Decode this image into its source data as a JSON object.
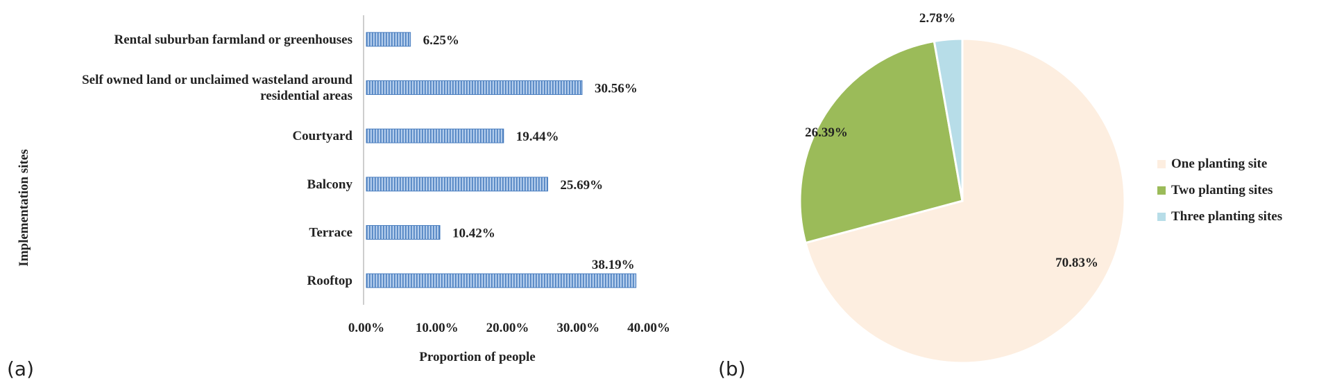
{
  "panel_labels": {
    "a": "(a)",
    "b": "(b)"
  },
  "chart_data": [
    {
      "type": "bar",
      "orientation": "horizontal",
      "title": "",
      "xlabel": "Proportion of people",
      "ylabel": "Implementation sites",
      "xlim": [
        0,
        40
      ],
      "x_ticks": [
        "0.00%",
        "10.00%",
        "20.00%",
        "30.00%",
        "40.00%"
      ],
      "categories": [
        "Rental suburban farmland or greenhouses",
        "Self owned land or unclaimed wasteland around residential areas",
        "Courtyard",
        "Balcony",
        "Terrace",
        "Rooftop"
      ],
      "category_lines": [
        [
          "Rental suburban farmland or greenhouses"
        ],
        [
          "Self owned land or unclaimed wasteland around",
          "residential areas"
        ],
        [
          "Courtyard"
        ],
        [
          "Balcony"
        ],
        [
          "Terrace"
        ],
        [
          "Rooftop"
        ]
      ],
      "values": [
        6.25,
        30.56,
        19.44,
        25.69,
        10.42,
        38.19
      ],
      "value_labels": [
        "6.25%",
        "30.56%",
        "19.44%",
        "25.69%",
        "10.42%",
        "38.19%"
      ],
      "bar_color": "#4a7ebf",
      "bar_fill": "#a9c4e8",
      "grid": false,
      "legend": "none"
    },
    {
      "type": "pie",
      "title": "",
      "slices": [
        {
          "label": "One planting site",
          "value": 70.83,
          "value_label": "70.83%",
          "color": "#fdeee0"
        },
        {
          "label": "Two planting sites",
          "value": 26.39,
          "value_label": "26.39%",
          "color": "#9bbb59"
        },
        {
          "label": "Three planting sites",
          "value": 2.78,
          "value_label": "2.78%",
          "color": "#b7dde8"
        }
      ],
      "start_angle_deg": 0,
      "direction": "clockwise",
      "legend": "right"
    }
  ]
}
